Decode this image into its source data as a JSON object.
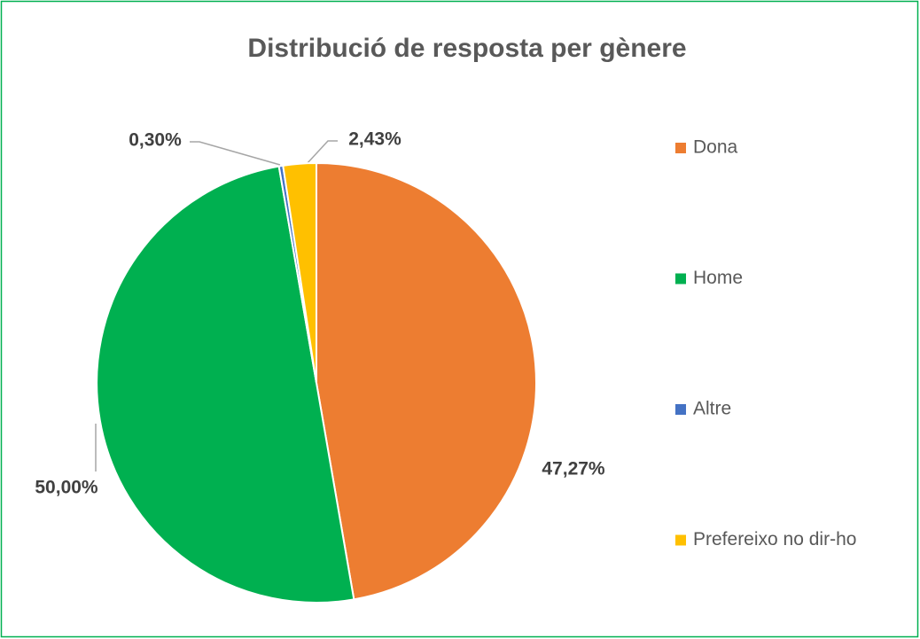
{
  "chart_data": {
    "type": "pie",
    "title": "Distribució de resposta per gènere",
    "categories": [
      "Dona",
      "Home",
      "Altre",
      "Prefereixo no dir-ho"
    ],
    "values": [
      47.27,
      50.0,
      0.3,
      2.43
    ],
    "value_labels": [
      "47,27%",
      "50,00%",
      "0,30%",
      "2,43%"
    ],
    "colors": [
      "#ed7d31",
      "#00b050",
      "#4472c4",
      "#ffc000"
    ],
    "legend": "right"
  }
}
